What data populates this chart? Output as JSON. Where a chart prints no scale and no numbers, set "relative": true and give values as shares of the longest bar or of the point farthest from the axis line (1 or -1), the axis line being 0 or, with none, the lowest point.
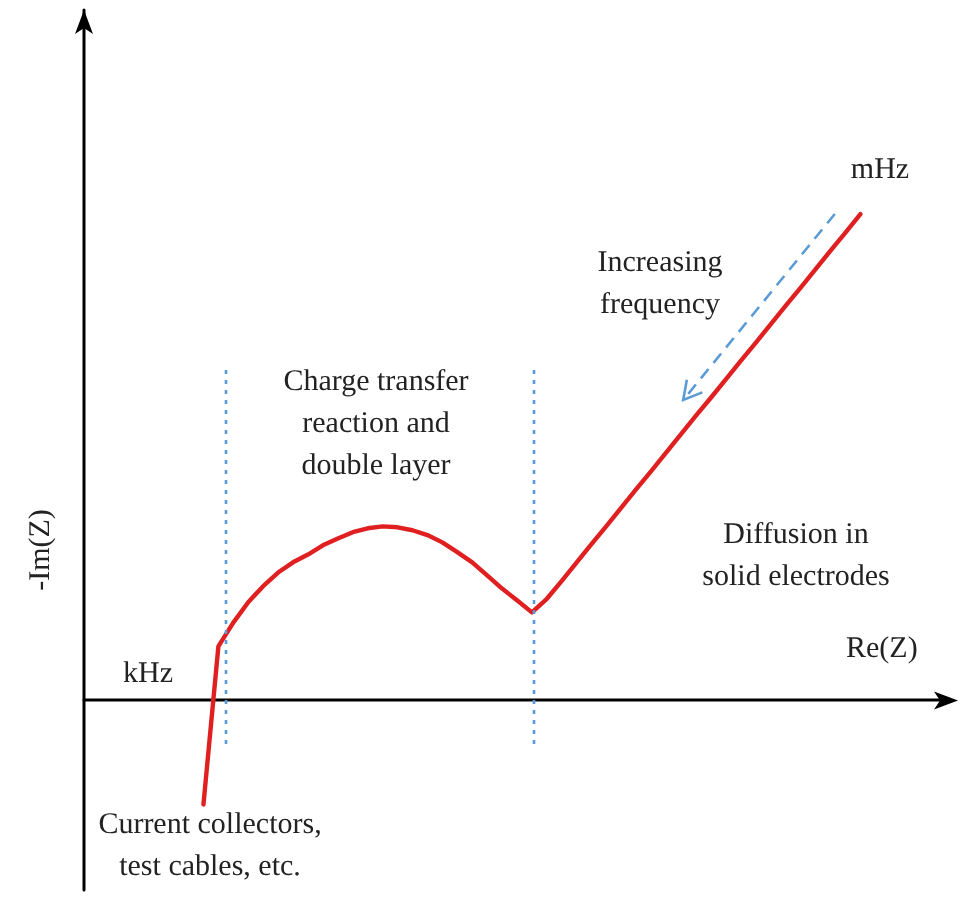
{
  "chart_data": {
    "type": "line",
    "relative": true,
    "xlabel": "Re(Z)",
    "ylabel": "-Im(Z)",
    "marker": "none",
    "categories": [
      null,
      null,
      null,
      null,
      null,
      null,
      null,
      null,
      null,
      null,
      null,
      null,
      null,
      null,
      null,
      null,
      null,
      null,
      null,
      null,
      null,
      null,
      null,
      null,
      null,
      null,
      null,
      null,
      null,
      null,
      null,
      null,
      null,
      null,
      null,
      null,
      null,
      null,
      null,
      null,
      null,
      null,
      null,
      null,
      null,
      null,
      null,
      null,
      null,
      null,
      null,
      null,
      null,
      null,
      null,
      null,
      null,
      null,
      null
    ],
    "series": [
      {
        "color": "#e02020",
        "values": [
          null,
          null,
          null,
          null,
          null,
          null,
          null,
          null,
          -0.214,
          0.111,
          0.16,
          0.202,
          0.235,
          0.263,
          0.284,
          0.3,
          0.319,
          0.333,
          0.346,
          0.354,
          0.358,
          0.356,
          0.35,
          0.34,
          0.325,
          0.305,
          0.284,
          0.257,
          0.23,
          0.206,
          0.181,
          0.209,
          0.246,
          0.284,
          0.322,
          0.359,
          0.397,
          0.435,
          0.472,
          0.51,
          0.548,
          0.586,
          0.623,
          0.661,
          0.699,
          0.736,
          0.774,
          0.812,
          0.849,
          0.887,
          0.925,
          0.962,
          1,
          null,
          null,
          null,
          null,
          null,
          null
        ]
      }
    ],
    "annotations": [
      "mHz",
      "kHz",
      "Increasing\nfrequency",
      "Charge transfer\nreaction and\ndouble layer",
      "Diffusion in\nsolid electrodes",
      "Current collectors,\ntest cables, etc."
    ]
  }
}
